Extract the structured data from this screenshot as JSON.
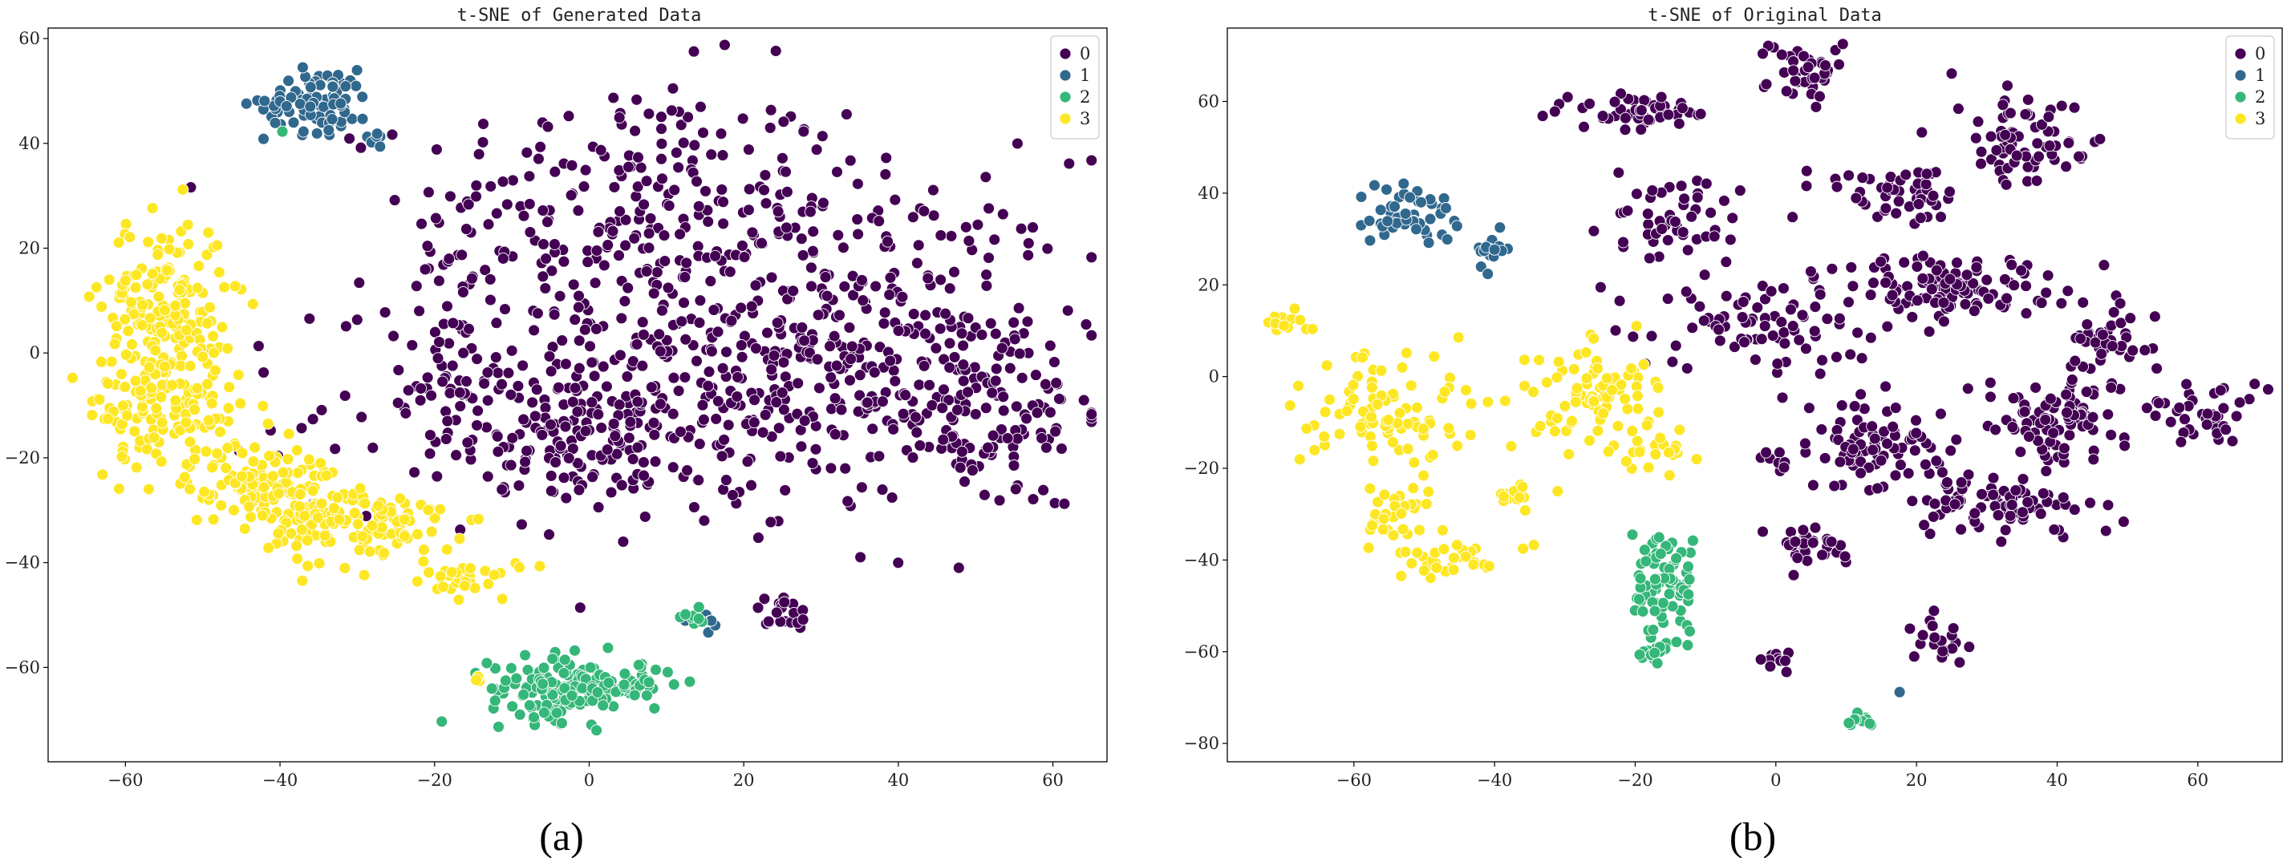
{
  "palette": {
    "0": "#440154",
    "1": "#31688e",
    "2": "#35b779",
    "3": "#fde725"
  },
  "chart_data": [
    {
      "type": "scatter",
      "title": "t-SNE of Generated Data",
      "caption": "(a)",
      "xlim": [
        -70,
        67
      ],
      "ylim": [
        -78,
        62
      ],
      "xticks": [
        -60,
        -40,
        -20,
        0,
        20,
        40,
        60
      ],
      "yticks": [
        -60,
        -40,
        -20,
        0,
        20,
        40,
        60
      ],
      "grid": false,
      "legend": {
        "placement": "top-right",
        "entries": [
          "0",
          "1",
          "2",
          "3"
        ]
      },
      "clusters": [
        {
          "label": "0",
          "cx": 5,
          "cy": 25,
          "sx": 14,
          "sy": 14,
          "n": 260
        },
        {
          "label": "0",
          "cx": 35,
          "cy": 5,
          "sx": 14,
          "sy": 16,
          "n": 260
        },
        {
          "label": "0",
          "cx": 10,
          "cy": -10,
          "sx": 22,
          "sy": 10,
          "n": 300
        },
        {
          "label": "0",
          "cx": -3,
          "cy": -15,
          "sx": 8,
          "sy": 8,
          "n": 100
        },
        {
          "label": "0",
          "cx": 50,
          "cy": -10,
          "sx": 8,
          "sy": 10,
          "n": 120
        },
        {
          "label": "0",
          "cx": -18,
          "cy": 5,
          "sx": 3,
          "sy": 10,
          "n": 40
        },
        {
          "label": "0",
          "cx": 25,
          "cy": -50,
          "sx": 2,
          "sy": 2,
          "n": 20
        },
        {
          "label": "1",
          "cx": -35,
          "cy": 48,
          "sx": 3.5,
          "sy": 3,
          "n": 90
        },
        {
          "label": "1",
          "cx": -28,
          "cy": 41,
          "sx": 1,
          "sy": 1,
          "n": 6
        },
        {
          "label": "1",
          "cx": 15,
          "cy": -51,
          "sx": 1.5,
          "sy": 1,
          "n": 8
        },
        {
          "label": "2",
          "cx": -3,
          "cy": -64,
          "sx": 5,
          "sy": 3,
          "n": 150
        },
        {
          "label": "2",
          "cx": 6,
          "cy": -63,
          "sx": 2.5,
          "sy": 1.5,
          "n": 20
        },
        {
          "label": "2",
          "cx": 14,
          "cy": -51,
          "sx": 1,
          "sy": 1,
          "n": 8
        },
        {
          "label": "2",
          "cx": -40,
          "cy": 42,
          "sx": 0.3,
          "sy": 0.3,
          "n": 1
        },
        {
          "label": "3",
          "cx": -55,
          "cy": 10,
          "sx": 4,
          "sy": 8,
          "n": 160
        },
        {
          "label": "3",
          "cx": -55,
          "cy": -10,
          "sx": 5,
          "sy": 6,
          "n": 140
        },
        {
          "label": "3",
          "cx": -42,
          "cy": -25,
          "sx": 5,
          "sy": 4,
          "n": 120
        },
        {
          "label": "3",
          "cx": -30,
          "cy": -33,
          "sx": 6,
          "sy": 4,
          "n": 120
        },
        {
          "label": "3",
          "cx": -15,
          "cy": -43,
          "sx": 3,
          "sy": 2,
          "n": 30
        },
        {
          "label": "3",
          "cx": -15,
          "cy": -62,
          "sx": 0.5,
          "sy": 0.5,
          "n": 4
        }
      ]
    },
    {
      "type": "scatter",
      "title": "t-SNE of Original Data",
      "caption": "(b)",
      "xlim": [
        -78,
        72
      ],
      "ylim": [
        -84,
        76
      ],
      "xticks": [
        -60,
        -40,
        -20,
        0,
        20,
        40,
        60
      ],
      "yticks": [
        -80,
        -60,
        -40,
        -20,
        0,
        20,
        40,
        60
      ],
      "grid": false,
      "legend": {
        "placement": "top-right",
        "entries": [
          "0",
          "1",
          "2",
          "3"
        ]
      },
      "clusters": [
        {
          "label": "0",
          "cx": -20,
          "cy": 58,
          "sx": 5,
          "sy": 2,
          "n": 50
        },
        {
          "label": "0",
          "cx": 4,
          "cy": 67,
          "sx": 3,
          "sy": 3,
          "n": 40
        },
        {
          "label": "0",
          "cx": 35,
          "cy": 52,
          "sx": 5,
          "sy": 5,
          "n": 70
        },
        {
          "label": "0",
          "cx": -15,
          "cy": 35,
          "sx": 4,
          "sy": 4,
          "n": 50
        },
        {
          "label": "0",
          "cx": 15,
          "cy": 40,
          "sx": 6,
          "sy": 3,
          "n": 50
        },
        {
          "label": "0",
          "cx": 0,
          "cy": 12,
          "sx": 8,
          "sy": 6,
          "n": 90
        },
        {
          "label": "0",
          "cx": 25,
          "cy": 20,
          "sx": 8,
          "sy": 4,
          "n": 110
        },
        {
          "label": "0",
          "cx": 15,
          "cy": -15,
          "sx": 6,
          "sy": 5,
          "n": 90
        },
        {
          "label": "0",
          "cx": 40,
          "cy": -10,
          "sx": 5,
          "sy": 5,
          "n": 90
        },
        {
          "label": "0",
          "cx": 33,
          "cy": -28,
          "sx": 6,
          "sy": 3,
          "n": 80
        },
        {
          "label": "0",
          "cx": 48,
          "cy": 8,
          "sx": 3,
          "sy": 3,
          "n": 40
        },
        {
          "label": "0",
          "cx": 62,
          "cy": -8,
          "sx": 4,
          "sy": 4,
          "n": 40
        },
        {
          "label": "0",
          "cx": 5,
          "cy": -36,
          "sx": 3,
          "sy": 2,
          "n": 40
        },
        {
          "label": "0",
          "cx": 23,
          "cy": -58,
          "sx": 2,
          "sy": 3,
          "n": 20
        },
        {
          "label": "0",
          "cx": 0,
          "cy": -62,
          "sx": 1,
          "sy": 1.5,
          "n": 10
        },
        {
          "label": "0",
          "cx": 0,
          "cy": -19,
          "sx": 1,
          "sy": 1,
          "n": 8
        },
        {
          "label": "1",
          "cx": -52,
          "cy": 35,
          "sx": 3,
          "sy": 3,
          "n": 50
        },
        {
          "label": "1",
          "cx": -41,
          "cy": 28,
          "sx": 1.5,
          "sy": 2,
          "n": 18
        },
        {
          "label": "1",
          "cx": 18,
          "cy": -69,
          "sx": 0.3,
          "sy": 0.3,
          "n": 1
        },
        {
          "label": "2",
          "cx": -16,
          "cy": -45,
          "sx": 2,
          "sy": 6,
          "n": 80
        },
        {
          "label": "2",
          "cx": -17,
          "cy": -60,
          "sx": 1.5,
          "sy": 1,
          "n": 15
        },
        {
          "label": "2",
          "cx": 12,
          "cy": -75,
          "sx": 1,
          "sy": 0.8,
          "n": 10
        },
        {
          "label": "3",
          "cx": -70,
          "cy": 12,
          "sx": 1.5,
          "sy": 1.5,
          "n": 12
        },
        {
          "label": "3",
          "cx": -55,
          "cy": -8,
          "sx": 6,
          "sy": 6,
          "n": 90
        },
        {
          "label": "3",
          "cx": -55,
          "cy": -30,
          "sx": 3,
          "sy": 4,
          "n": 30
        },
        {
          "label": "3",
          "cx": -48,
          "cy": -40,
          "sx": 4,
          "sy": 2,
          "n": 30
        },
        {
          "label": "3",
          "cx": -26,
          "cy": -5,
          "sx": 5,
          "sy": 6,
          "n": 90
        },
        {
          "label": "3",
          "cx": -38,
          "cy": -26,
          "sx": 2,
          "sy": 2,
          "n": 15
        },
        {
          "label": "3",
          "cx": -17,
          "cy": -16,
          "sx": 3,
          "sy": 2,
          "n": 20
        }
      ]
    }
  ]
}
